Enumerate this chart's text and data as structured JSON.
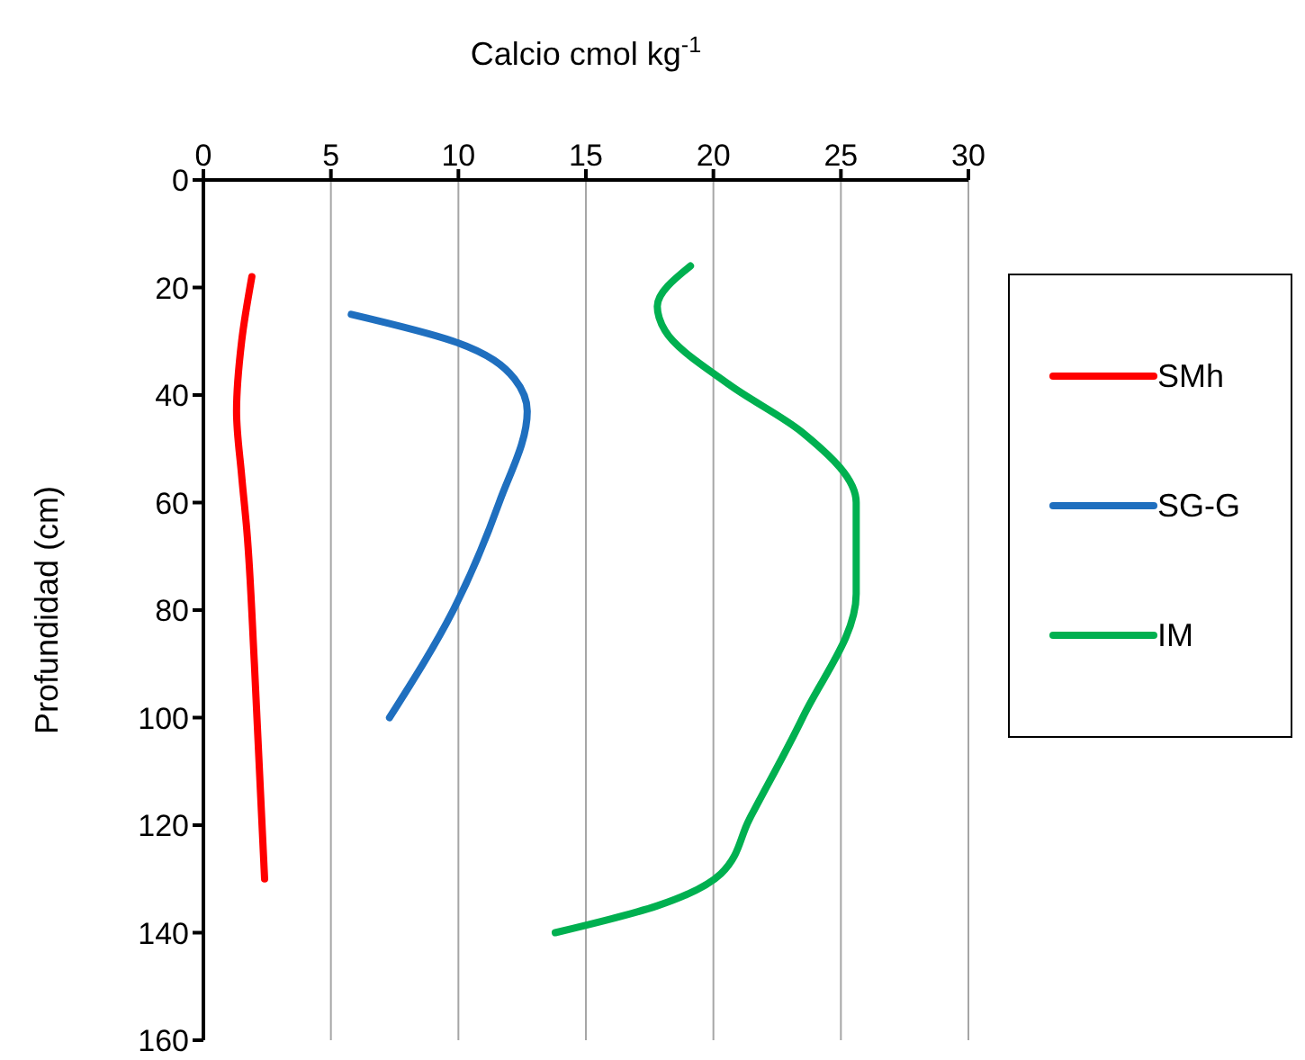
{
  "chart_data": {
    "type": "line",
    "xlabel": "Calcio cmol kg$^{-1}$",
    "ylabel": "Profundidad (cm)",
    "xlim": [
      0,
      30
    ],
    "xticks": [
      0,
      5,
      10,
      15,
      20,
      25,
      30
    ],
    "ylim": [
      160,
      0
    ],
    "yticks": [
      0,
      20,
      40,
      60,
      80,
      100,
      120,
      140,
      160
    ],
    "grid": "x",
    "legend": "right",
    "marker": "none",
    "series": [
      {
        "name": "SMh",
        "color": "#ff0000",
        "x": [
          1.9,
          1.5,
          1.3,
          1.5,
          1.7,
          2.0,
          2.4
        ],
        "values": [
          18,
          30,
          43,
          55,
          65,
          90,
          130
        ]
      },
      {
        "name": "SG-G",
        "color": "#1f6fbf",
        "x": [
          5.8,
          9.8,
          12.2,
          12.7,
          11.6,
          9.8,
          7.3
        ],
        "values": [
          25,
          30,
          37,
          43,
          60,
          80,
          100
        ]
      },
      {
        "name": "IM",
        "color": "#00b050",
        "x": [
          19.1,
          17.8,
          18.1,
          20.6,
          23.5,
          25.6,
          25.6,
          23.5,
          21.4,
          20.3,
          17.8,
          13.8
        ],
        "values": [
          16,
          23.5,
          28,
          38,
          47,
          60,
          77,
          100,
          119,
          129,
          135,
          140
        ]
      }
    ]
  }
}
